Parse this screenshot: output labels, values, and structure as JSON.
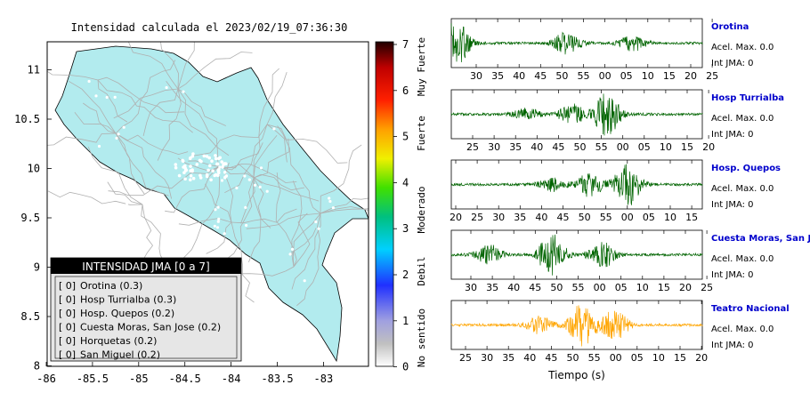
{
  "map": {
    "title": "Intensidad calculada el 2023/02/19_07:36:30",
    "x_ticks": [
      "-86",
      "-85.5",
      "-85",
      "-84.5",
      "-84",
      "-83.5",
      "-83"
    ],
    "y_ticks": [
      "11",
      "10.5",
      "10",
      "9.5",
      "9",
      "8.5",
      "8"
    ],
    "colors": {
      "land": "#b2ebee",
      "roads": "#b0b0b0",
      "frame": "#000000"
    }
  },
  "legend": {
    "title": "INTENSIDAD JMA [0 a 7]",
    "items": [
      {
        "level": "[ 0]",
        "label": "Orotina (0.3)"
      },
      {
        "level": "[ 0]",
        "label": "Hosp Turrialba (0.3)"
      },
      {
        "level": "[ 0]",
        "label": "Hosp. Quepos (0.2)"
      },
      {
        "level": "[ 0]",
        "label": "Cuesta Moras, San Jose (0.2)"
      },
      {
        "level": "[ 0]",
        "label": "Horquetas (0.2)"
      },
      {
        "level": "[ 0]",
        "label": "San Miguel (0.2)"
      }
    ]
  },
  "colorbar": {
    "ticks": [
      "7",
      "6",
      "5",
      "4",
      "3",
      "2",
      "1",
      "0"
    ],
    "labels": [
      "Muy Fuerte",
      "Fuerte",
      "Moderado",
      "Debil",
      "No sentido"
    ]
  },
  "stations": [
    {
      "name": "Orotina",
      "accel": "Acel. Max. 0.0",
      "int": "Int JMA: 0",
      "color": "#006400",
      "ticks": [
        "30",
        "35",
        "40",
        "45",
        "50",
        "55",
        "00",
        "05",
        "10",
        "15",
        "20",
        "25"
      ],
      "first_tick": 28,
      "bursts": [
        [
          0.02,
          1.0
        ],
        [
          0.46,
          0.55
        ],
        [
          0.72,
          0.35
        ]
      ]
    },
    {
      "name": "Hosp Turrialba",
      "accel": "Acel. Max. 0.0",
      "int": "Int JMA: 0",
      "color": "#006400",
      "ticks": [
        "25",
        "30",
        "35",
        "40",
        "45",
        "50",
        "55",
        "00",
        "05",
        "10",
        "15",
        "20"
      ],
      "first_tick": 24,
      "bursts": [
        [
          0.62,
          1.0
        ],
        [
          0.48,
          0.45
        ],
        [
          0.3,
          0.25
        ]
      ]
    },
    {
      "name": "Hosp. Quepos",
      "accel": "Acel. Max. 0.0",
      "int": "Int JMA: 0",
      "color": "#006400",
      "ticks": [
        "20",
        "25",
        "30",
        "35",
        "40",
        "45",
        "50",
        "55",
        "00",
        "05",
        "10",
        "15"
      ],
      "first_tick": 5,
      "bursts": [
        [
          0.7,
          1.0
        ],
        [
          0.55,
          0.55
        ],
        [
          0.4,
          0.3
        ]
      ]
    },
    {
      "name": "Cuesta Moras, San Jose",
      "accel": "Acel. Max. 0.0",
      "int": "Int JMA: 0",
      "color": "#006400",
      "ticks": [
        "30",
        "35",
        "40",
        "45",
        "50",
        "55",
        "00",
        "05",
        "10",
        "15",
        "20",
        "25"
      ],
      "first_tick": 22,
      "bursts": [
        [
          0.4,
          1.0
        ],
        [
          0.6,
          0.6
        ],
        [
          0.15,
          0.45
        ]
      ]
    },
    {
      "name": "Teatro Nacional",
      "accel": "Acel. Max. 0.0",
      "int": "Int JMA: 0",
      "color": "#ffa500",
      "ticks": [
        "25",
        "30",
        "35",
        "40",
        "45",
        "50",
        "55",
        "00",
        "05",
        "10",
        "15",
        "20"
      ],
      "first_tick": 16,
      "bursts": [
        [
          0.52,
          1.0
        ],
        [
          0.65,
          0.7
        ],
        [
          0.35,
          0.4
        ]
      ]
    }
  ],
  "xlabel": "Tiempo (s)"
}
